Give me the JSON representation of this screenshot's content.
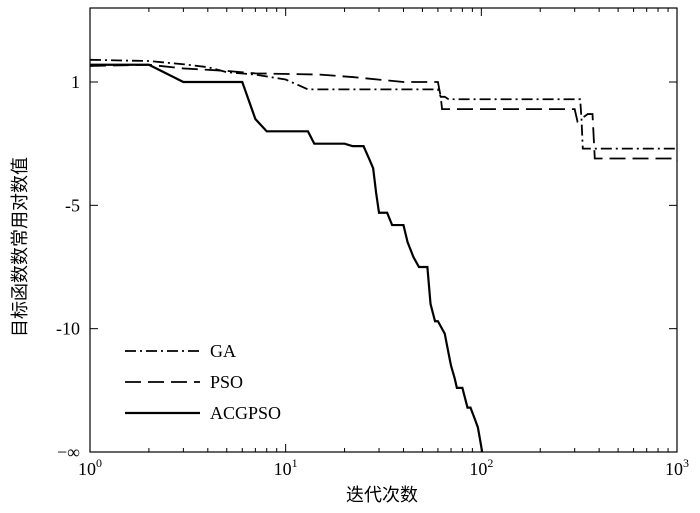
{
  "chart_data": {
    "type": "line",
    "title": "",
    "xlabel": "迭代次数",
    "ylabel": "目标函数数常用对数值",
    "xscale": "log",
    "xlim": [
      1,
      1000
    ],
    "ylim": [
      -15,
      3
    ],
    "xticks": [
      {
        "value": 1,
        "base": "10",
        "exp": "0"
      },
      {
        "value": 10,
        "base": "10",
        "exp": "1"
      },
      {
        "value": 100,
        "base": "10",
        "exp": "2"
      },
      {
        "value": 1000,
        "base": "10",
        "exp": "3"
      }
    ],
    "yticks": [
      {
        "value": 0,
        "label": "1"
      },
      {
        "value": -5,
        "label": "-5"
      },
      {
        "value": -10,
        "label": "-10"
      },
      {
        "value": -15,
        "label": "−∞"
      }
    ],
    "grid": false,
    "legend": {
      "position": "bottom-left"
    },
    "series": [
      {
        "name": "GA",
        "style": "dashdot",
        "color": "#000000",
        "points": [
          [
            1,
            0.9
          ],
          [
            2,
            0.85
          ],
          [
            3,
            0.72
          ],
          [
            4,
            0.6
          ],
          [
            5,
            0.4
          ],
          [
            7,
            0.3
          ],
          [
            10,
            0.1
          ],
          [
            13,
            -0.3
          ],
          [
            30,
            -0.3
          ],
          [
            60,
            -0.3
          ],
          [
            62,
            -0.6
          ],
          [
            65,
            -0.6
          ],
          [
            68,
            -0.7
          ],
          [
            150,
            -0.7
          ],
          [
            320,
            -0.7
          ],
          [
            325,
            -1.5
          ],
          [
            330,
            -2.7
          ],
          [
            340,
            -2.7
          ],
          [
            1000,
            -2.7
          ]
        ]
      },
      {
        "name": "PSO",
        "style": "dashed",
        "color": "#000000",
        "points": [
          [
            1,
            0.65
          ],
          [
            2,
            0.7
          ],
          [
            3,
            0.55
          ],
          [
            5,
            0.45
          ],
          [
            7,
            0.35
          ],
          [
            15,
            0.3
          ],
          [
            22,
            0.2
          ],
          [
            40,
            0.0
          ],
          [
            60,
            0.0
          ],
          [
            62,
            -0.6
          ],
          [
            63,
            -1.1
          ],
          [
            100,
            -1.1
          ],
          [
            200,
            -1.1
          ],
          [
            300,
            -1.1
          ],
          [
            310,
            -1.6
          ],
          [
            350,
            -1.3
          ],
          [
            370,
            -1.3
          ],
          [
            380,
            -3.1
          ],
          [
            600,
            -3.1
          ],
          [
            990,
            -3.1
          ],
          [
            1000,
            -3.2
          ]
        ]
      },
      {
        "name": "ACGPSO",
        "style": "solid",
        "color": "#000000",
        "points": [
          [
            1,
            0.7
          ],
          [
            2,
            0.7
          ],
          [
            3,
            0.0
          ],
          [
            4,
            0.0
          ],
          [
            5,
            0.0
          ],
          [
            6,
            0.0
          ],
          [
            7,
            -1.5
          ],
          [
            8,
            -2.0
          ],
          [
            9,
            -2.0
          ],
          [
            10,
            -2.0
          ],
          [
            13,
            -2.0
          ],
          [
            14,
            -2.5
          ],
          [
            15,
            -2.5
          ],
          [
            20,
            -2.5
          ],
          [
            22,
            -2.6
          ],
          [
            23,
            -2.6
          ],
          [
            25,
            -2.6
          ],
          [
            27,
            -3.2
          ],
          [
            28,
            -3.5
          ],
          [
            29,
            -4.5
          ],
          [
            30,
            -5.3
          ],
          [
            33,
            -5.3
          ],
          [
            35,
            -5.8
          ],
          [
            40,
            -5.8
          ],
          [
            42,
            -6.5
          ],
          [
            45,
            -7.1
          ],
          [
            48,
            -7.5
          ],
          [
            50,
            -7.5
          ],
          [
            53,
            -7.5
          ],
          [
            55,
            -9.0
          ],
          [
            58,
            -9.7
          ],
          [
            60,
            -9.7
          ],
          [
            65,
            -10.2
          ],
          [
            68,
            -11.0
          ],
          [
            70,
            -11.5
          ],
          [
            73,
            -12.0
          ],
          [
            75,
            -12.4
          ],
          [
            80,
            -12.4
          ],
          [
            85,
            -13.2
          ],
          [
            88,
            -13.2
          ],
          [
            92,
            -13.6
          ],
          [
            96,
            -14.0
          ],
          [
            98,
            -14.4
          ],
          [
            100,
            -14.8
          ],
          [
            101,
            -15.0
          ]
        ]
      }
    ]
  }
}
